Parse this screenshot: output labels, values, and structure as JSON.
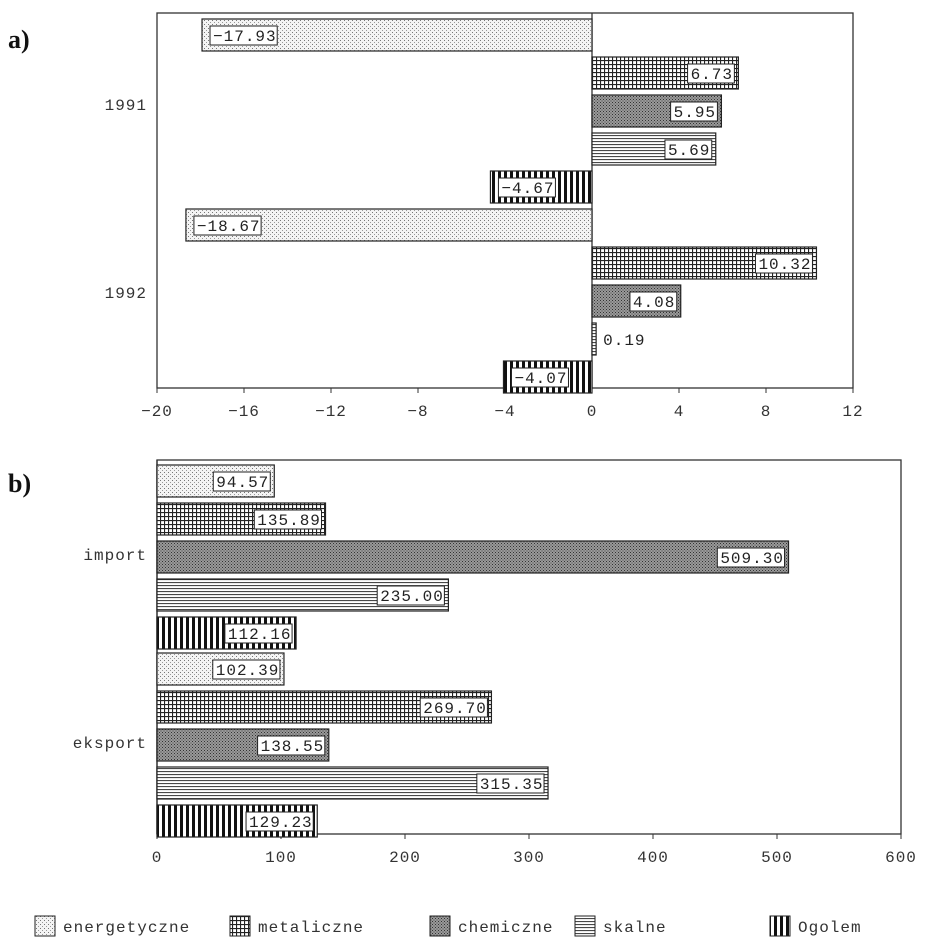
{
  "legend": [
    {
      "key": "energetyczne",
      "label": "energetyczne",
      "pattern": "dots"
    },
    {
      "key": "metaliczne",
      "label": "metaliczne",
      "pattern": "grid"
    },
    {
      "key": "chemiczne",
      "label": "chemiczne",
      "pattern": "cross"
    },
    {
      "key": "skalne",
      "label": "skalne",
      "pattern": "hlines"
    },
    {
      "key": "ogolem",
      "label": "Ogolem",
      "pattern": "vlines"
    }
  ],
  "chart_data": [
    {
      "panel_label": "a)",
      "type": "bar",
      "orientation": "horizontal",
      "xlim": [
        -20,
        12
      ],
      "xticks": [
        -20,
        -16,
        -12,
        -8,
        -4,
        0,
        4,
        8,
        12
      ],
      "categories": [
        "1991",
        "1992"
      ],
      "series": [
        {
          "name": "energetyczne",
          "values": [
            -17.93,
            -18.67
          ],
          "labels": [
            "-17.93",
            "-18.67"
          ]
        },
        {
          "name": "metaliczne",
          "values": [
            6.73,
            10.32
          ],
          "labels": [
            "6.73",
            "10.32"
          ]
        },
        {
          "name": "chemiczne",
          "values": [
            5.95,
            4.08
          ],
          "labels": [
            "5.95",
            "4.08"
          ]
        },
        {
          "name": "skalne",
          "values": [
            5.69,
            0.19
          ],
          "labels": [
            "5.69",
            "0.19"
          ]
        },
        {
          "name": "Ogolem",
          "values": [
            -4.67,
            -4.07
          ],
          "labels": [
            "-4.67",
            "-4.07"
          ]
        }
      ]
    },
    {
      "panel_label": "b)",
      "type": "bar",
      "orientation": "horizontal",
      "xlim": [
        0,
        600
      ],
      "xticks": [
        0,
        100,
        200,
        300,
        400,
        500,
        600
      ],
      "categories": [
        "import",
        "eksport"
      ],
      "series": [
        {
          "name": "energetyczne",
          "values": [
            94.57,
            102.39
          ],
          "labels": [
            "94.57",
            "102.39"
          ]
        },
        {
          "name": "metaliczne",
          "values": [
            135.89,
            269.7
          ],
          "labels": [
            "135.89",
            "269.70"
          ]
        },
        {
          "name": "chemiczne",
          "values": [
            509.3,
            138.55
          ],
          "labels": [
            "509.30",
            "138.55"
          ]
        },
        {
          "name": "skalne",
          "values": [
            235.0,
            315.35
          ],
          "labels": [
            "235.00",
            "315.35"
          ]
        },
        {
          "name": "Ogolem",
          "values": [
            112.16,
            129.23
          ],
          "labels": [
            "112.16",
            "129.23"
          ]
        }
      ]
    }
  ]
}
